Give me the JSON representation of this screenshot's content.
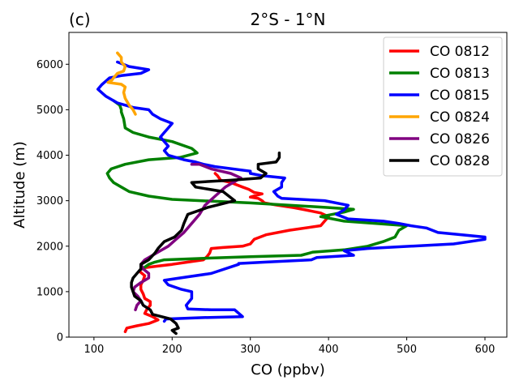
{
  "chart_data": {
    "type": "line",
    "panel_label": "(c)",
    "title": "2°S - 1°N",
    "xlabel": "CO (ppbv)",
    "ylabel": "Altitude (m)",
    "xlim": [
      68,
      628
    ],
    "ylim": [
      0,
      6700
    ],
    "x_ticks": [
      100,
      200,
      300,
      400,
      500,
      600
    ],
    "y_ticks": [
      0,
      1000,
      2000,
      3000,
      4000,
      5000,
      6000
    ],
    "grid": false,
    "legend_position": "top-right",
    "series": [
      {
        "name": "CO 0812",
        "color": "#ff0000",
        "points": [
          [
            140,
            120
          ],
          [
            142,
            200
          ],
          [
            155,
            250
          ],
          [
            170,
            300
          ],
          [
            182,
            380
          ],
          [
            175,
            450
          ],
          [
            165,
            520
          ],
          [
            168,
            620
          ],
          [
            172,
            700
          ],
          [
            172,
            780
          ],
          [
            165,
            850
          ],
          [
            163,
            950
          ],
          [
            160,
            1050
          ],
          [
            160,
            1150
          ],
          [
            163,
            1250
          ],
          [
            165,
            1350
          ],
          [
            158,
            1450
          ],
          [
            162,
            1520
          ],
          [
            180,
            1560
          ],
          [
            200,
            1600
          ],
          [
            220,
            1650
          ],
          [
            240,
            1700
          ],
          [
            245,
            1780
          ],
          [
            248,
            1850
          ],
          [
            250,
            1950
          ],
          [
            265,
            1970
          ],
          [
            290,
            2000
          ],
          [
            300,
            2050
          ],
          [
            305,
            2150
          ],
          [
            320,
            2250
          ],
          [
            350,
            2350
          ],
          [
            390,
            2450
          ],
          [
            395,
            2550
          ],
          [
            400,
            2650
          ],
          [
            390,
            2730
          ],
          [
            370,
            2800
          ],
          [
            355,
            2850
          ],
          [
            335,
            2900
          ],
          [
            318,
            2950
          ],
          [
            315,
            3000
          ],
          [
            310,
            3050
          ],
          [
            300,
            3080
          ],
          [
            308,
            3120
          ],
          [
            315,
            3150
          ],
          [
            305,
            3180
          ],
          [
            298,
            3250
          ],
          [
            290,
            3300
          ],
          [
            275,
            3400
          ],
          [
            262,
            3450
          ],
          [
            258,
            3550
          ],
          [
            255,
            3600
          ]
        ]
      },
      {
        "name": "CO 0813",
        "color": "#008000",
        "points": [
          [
            162,
            1500
          ],
          [
            170,
            1600
          ],
          [
            178,
            1650
          ],
          [
            190,
            1700
          ],
          [
            250,
            1740
          ],
          [
            300,
            1770
          ],
          [
            365,
            1800
          ],
          [
            380,
            1870
          ],
          [
            420,
            1920
          ],
          [
            450,
            2000
          ],
          [
            470,
            2100
          ],
          [
            485,
            2200
          ],
          [
            490,
            2350
          ],
          [
            500,
            2450
          ],
          [
            420,
            2550
          ],
          [
            390,
            2650
          ],
          [
            420,
            2750
          ],
          [
            432,
            2810
          ],
          [
            400,
            2850
          ],
          [
            300,
            2950
          ],
          [
            200,
            3030
          ],
          [
            170,
            3100
          ],
          [
            145,
            3200
          ],
          [
            135,
            3300
          ],
          [
            125,
            3400
          ],
          [
            120,
            3500
          ],
          [
            117,
            3600
          ],
          [
            122,
            3700
          ],
          [
            140,
            3800
          ],
          [
            170,
            3900
          ],
          [
            210,
            3950
          ],
          [
            232,
            4050
          ],
          [
            225,
            4150
          ],
          [
            200,
            4300
          ],
          [
            170,
            4400
          ],
          [
            150,
            4500
          ],
          [
            140,
            4600
          ],
          [
            138,
            4800
          ],
          [
            135,
            4950
          ],
          [
            135,
            5000
          ],
          [
            133,
            5100
          ],
          [
            125,
            5200
          ]
        ]
      },
      {
        "name": "CO 0815",
        "color": "#0000ff",
        "points": [
          [
            190,
            350
          ],
          [
            192,
            400
          ],
          [
            240,
            430
          ],
          [
            290,
            450
          ],
          [
            280,
            600
          ],
          [
            250,
            600
          ],
          [
            220,
            620
          ],
          [
            218,
            700
          ],
          [
            225,
            850
          ],
          [
            225,
            1000
          ],
          [
            212,
            1050
          ],
          [
            195,
            1150
          ],
          [
            190,
            1250
          ],
          [
            210,
            1300
          ],
          [
            250,
            1400
          ],
          [
            285,
            1600
          ],
          [
            285,
            1620
          ],
          [
            320,
            1650
          ],
          [
            378,
            1700
          ],
          [
            385,
            1750
          ],
          [
            432,
            1800
          ],
          [
            420,
            1900
          ],
          [
            450,
            1950
          ],
          [
            560,
            2050
          ],
          [
            600,
            2150
          ],
          [
            600,
            2200
          ],
          [
            540,
            2300
          ],
          [
            525,
            2400
          ],
          [
            505,
            2450
          ],
          [
            490,
            2500
          ],
          [
            470,
            2550
          ],
          [
            425,
            2600
          ],
          [
            410,
            2700
          ],
          [
            420,
            2800
          ],
          [
            425,
            2900
          ],
          [
            395,
            3000
          ],
          [
            340,
            3050
          ],
          [
            335,
            3100
          ],
          [
            330,
            3200
          ],
          [
            340,
            3300
          ],
          [
            340,
            3400
          ],
          [
            344,
            3500
          ],
          [
            315,
            3550
          ],
          [
            300,
            3600
          ],
          [
            300,
            3650
          ],
          [
            255,
            3750
          ],
          [
            240,
            3800
          ],
          [
            230,
            3850
          ],
          [
            215,
            3900
          ],
          [
            205,
            3950
          ],
          [
            195,
            4000
          ],
          [
            190,
            4100
          ],
          [
            195,
            4200
          ],
          [
            190,
            4300
          ],
          [
            185,
            4400
          ],
          [
            190,
            4500
          ],
          [
            195,
            4600
          ],
          [
            200,
            4700
          ],
          [
            185,
            4800
          ],
          [
            175,
            4900
          ],
          [
            170,
            5000
          ],
          [
            150,
            5050
          ],
          [
            130,
            5150
          ],
          [
            115,
            5300
          ],
          [
            105,
            5450
          ],
          [
            110,
            5550
          ],
          [
            120,
            5700
          ],
          [
            135,
            5750
          ],
          [
            160,
            5800
          ],
          [
            170,
            5880
          ],
          [
            145,
            5950
          ],
          [
            130,
            6050
          ]
        ]
      },
      {
        "name": "CO 0824",
        "color": "#ffa500",
        "points": [
          [
            153,
            4900
          ],
          [
            150,
            5000
          ],
          [
            145,
            5100
          ],
          [
            140,
            5250
          ],
          [
            138,
            5380
          ],
          [
            140,
            5500
          ],
          [
            135,
            5560
          ],
          [
            118,
            5600
          ],
          [
            123,
            5650
          ],
          [
            125,
            5700
          ],
          [
            130,
            5800
          ],
          [
            138,
            5850
          ],
          [
            140,
            5950
          ],
          [
            135,
            6050
          ],
          [
            135,
            6150
          ],
          [
            130,
            6250
          ]
        ]
      },
      {
        "name": "CO 0826",
        "color": "#800080",
        "points": [
          [
            153,
            600
          ],
          [
            155,
            700
          ],
          [
            160,
            800
          ],
          [
            156,
            900
          ],
          [
            150,
            1000
          ],
          [
            152,
            1100
          ],
          [
            160,
            1200
          ],
          [
            170,
            1300
          ],
          [
            170,
            1400
          ],
          [
            163,
            1500
          ],
          [
            160,
            1600
          ],
          [
            165,
            1700
          ],
          [
            175,
            1800
          ],
          [
            185,
            1900
          ],
          [
            195,
            2000
          ],
          [
            205,
            2150
          ],
          [
            215,
            2300
          ],
          [
            225,
            2500
          ],
          [
            235,
            2700
          ],
          [
            242,
            2900
          ],
          [
            255,
            3100
          ],
          [
            268,
            3300
          ],
          [
            288,
            3500
          ],
          [
            275,
            3600
          ],
          [
            250,
            3700
          ],
          [
            235,
            3800
          ],
          [
            225,
            3800
          ]
        ]
      },
      {
        "name": "CO 0828",
        "color": "#000000",
        "points": [
          [
            205,
            80
          ],
          [
            200,
            150
          ],
          [
            208,
            200
          ],
          [
            205,
            300
          ],
          [
            198,
            400
          ],
          [
            175,
            500
          ],
          [
            172,
            600
          ],
          [
            163,
            700
          ],
          [
            160,
            800
          ],
          [
            152,
            900
          ],
          [
            150,
            1000
          ],
          [
            148,
            1100
          ],
          [
            148,
            1200
          ],
          [
            150,
            1300
          ],
          [
            155,
            1400
          ],
          [
            160,
            1500
          ],
          [
            160,
            1600
          ],
          [
            170,
            1700
          ],
          [
            178,
            1850
          ],
          [
            182,
            1950
          ],
          [
            190,
            2100
          ],
          [
            203,
            2200
          ],
          [
            212,
            2350
          ],
          [
            215,
            2500
          ],
          [
            220,
            2700
          ],
          [
            245,
            2850
          ],
          [
            280,
            3000
          ],
          [
            265,
            3200
          ],
          [
            230,
            3300
          ],
          [
            225,
            3400
          ],
          [
            275,
            3450
          ],
          [
            313,
            3500
          ],
          [
            320,
            3600
          ],
          [
            310,
            3700
          ],
          [
            310,
            3800
          ],
          [
            333,
            3850
          ],
          [
            335,
            3900
          ],
          [
            337,
            3950
          ],
          [
            337,
            4050
          ]
        ]
      }
    ]
  }
}
